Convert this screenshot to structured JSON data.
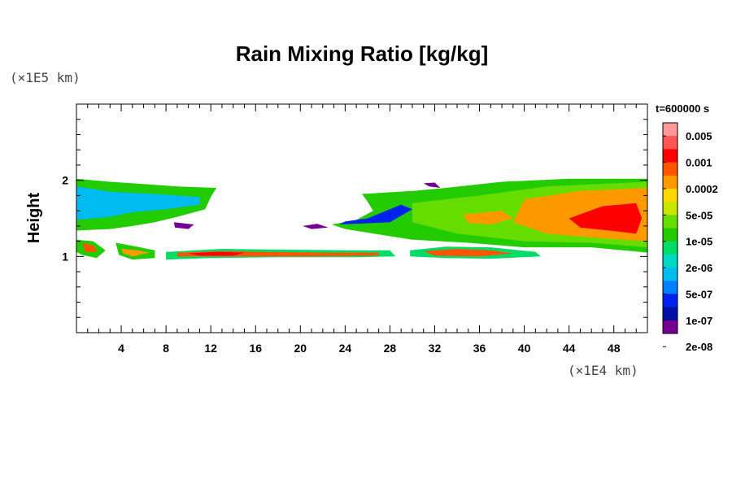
{
  "chart_data": {
    "type": "heatmap",
    "title": "Rain Mixing Ratio [kg/kg]",
    "xlabel": "",
    "ylabel": "Height",
    "x_unit": "(×1E4 km)",
    "y_unit": "(×1E5 km)",
    "time_label": "t=600000 s",
    "x_ticks": [
      "4",
      "8",
      "12",
      "16",
      "20",
      "24",
      "28",
      "32",
      "36",
      "40",
      "44",
      "48"
    ],
    "x_tick_values": [
      4,
      8,
      12,
      16,
      20,
      24,
      28,
      32,
      36,
      40,
      44,
      48
    ],
    "y_ticks": [
      "1",
      "2"
    ],
    "y_tick_values": [
      1,
      2
    ],
    "xlim": [
      0,
      51
    ],
    "ylim": [
      0,
      3
    ],
    "grid": false,
    "legend": {
      "placement": "right",
      "labels": [
        "0.005",
        "0.001",
        "0.0002",
        "5e-05",
        "1e-05",
        "2e-06",
        "5e-07",
        "1e-07",
        "2e-08"
      ],
      "colors": [
        "#ff9999",
        "#ff5555",
        "#ff0000",
        "#ff5500",
        "#ff9900",
        "#ffd700",
        "#c8e600",
        "#66dd00",
        "#22cc00",
        "#00dd66",
        "#00d9c2",
        "#00bbf0",
        "#0080ff",
        "#0022ee",
        "#000fa8",
        "#750094"
      ]
    },
    "regions": [
      {
        "level": 8,
        "points": [
          [
            0,
            2.02
          ],
          [
            3,
            1.98
          ],
          [
            6,
            1.95
          ],
          [
            9,
            1.92
          ],
          [
            12.5,
            1.9
          ],
          [
            12,
            1.78
          ],
          [
            11.5,
            1.62
          ],
          [
            9,
            1.52
          ],
          [
            7,
            1.45
          ],
          [
            5,
            1.4
          ],
          [
            3,
            1.36
          ],
          [
            0,
            1.34
          ]
        ]
      },
      {
        "level": 11,
        "points": [
          [
            0,
            1.92
          ],
          [
            3,
            1.85
          ],
          [
            7,
            1.82
          ],
          [
            11,
            1.78
          ],
          [
            11,
            1.68
          ],
          [
            8,
            1.62
          ],
          [
            5,
            1.58
          ],
          [
            3,
            1.52
          ],
          [
            0,
            1.48
          ]
        ]
      },
      {
        "level": 8,
        "points": [
          [
            25.5,
            1.82
          ],
          [
            30,
            1.86
          ],
          [
            33,
            1.9
          ],
          [
            38,
            1.98
          ],
          [
            44,
            2.02
          ],
          [
            51,
            2.02
          ],
          [
            51,
            1.05
          ],
          [
            46,
            1.12
          ],
          [
            40,
            1.12
          ],
          [
            35,
            1.18
          ],
          [
            30,
            1.22
          ],
          [
            24,
            1.36
          ],
          [
            22.8,
            1.42
          ],
          [
            25,
            1.48
          ],
          [
            26.5,
            1.6
          ],
          [
            26,
            1.72
          ]
        ]
      },
      {
        "level": 8,
        "points": [
          [
            27,
            1.82
          ],
          [
            31,
            1.83
          ],
          [
            34,
            1.88
          ],
          [
            35,
            1.8
          ],
          [
            33,
            1.72
          ],
          [
            30,
            1.7
          ],
          [
            27.5,
            1.72
          ]
        ]
      },
      {
        "level": 7,
        "points": [
          [
            30,
            1.7
          ],
          [
            36,
            1.8
          ],
          [
            42,
            1.92
          ],
          [
            51,
            1.98
          ],
          [
            51,
            1.12
          ],
          [
            46,
            1.18
          ],
          [
            40,
            1.2
          ],
          [
            34,
            1.3
          ],
          [
            30,
            1.45
          ]
        ]
      },
      {
        "level": 4,
        "points": [
          [
            40,
            1.75
          ],
          [
            45,
            1.86
          ],
          [
            51,
            1.9
          ],
          [
            51,
            1.2
          ],
          [
            47,
            1.24
          ],
          [
            42,
            1.3
          ],
          [
            39,
            1.45
          ]
        ]
      },
      {
        "level": 4,
        "points": [
          [
            34.5,
            1.55
          ],
          [
            38,
            1.6
          ],
          [
            39,
            1.5
          ],
          [
            37,
            1.42
          ],
          [
            35,
            1.44
          ]
        ]
      },
      {
        "level": 2,
        "points": [
          [
            44,
            1.5
          ],
          [
            47,
            1.66
          ],
          [
            50,
            1.7
          ],
          [
            50.5,
            1.5
          ],
          [
            50,
            1.3
          ],
          [
            47,
            1.35
          ],
          [
            45,
            1.38
          ]
        ]
      },
      {
        "level": 13,
        "points": [
          [
            23.5,
            1.42
          ],
          [
            28,
            1.45
          ],
          [
            30,
            1.62
          ],
          [
            29,
            1.68
          ],
          [
            26,
            1.5
          ],
          [
            24,
            1.46
          ]
        ]
      },
      {
        "level": 15,
        "points": [
          [
            8.7,
            1.45
          ],
          [
            10.5,
            1.42
          ],
          [
            10,
            1.36
          ],
          [
            8.8,
            1.38
          ]
        ]
      },
      {
        "level": 15,
        "points": [
          [
            20.2,
            1.4
          ],
          [
            21.5,
            1.43
          ],
          [
            22.5,
            1.38
          ],
          [
            21,
            1.36
          ]
        ]
      },
      {
        "level": 15,
        "points": [
          [
            31,
            1.96
          ],
          [
            31.5,
            1.92
          ],
          [
            32.5,
            1.9
          ],
          [
            32,
            1.97
          ]
        ]
      },
      {
        "level": 8,
        "points": [
          [
            0,
            1.22
          ],
          [
            1.5,
            1.2
          ],
          [
            2.6,
            1.08
          ],
          [
            1.8,
            0.98
          ],
          [
            0.5,
            1.02
          ],
          [
            0,
            1.06
          ]
        ]
      },
      {
        "level": 3,
        "points": [
          [
            0.5,
            1.18
          ],
          [
            1.6,
            1.14
          ],
          [
            1.8,
            1.06
          ],
          [
            0.8,
            1.06
          ]
        ]
      },
      {
        "level": 8,
        "points": [
          [
            3.5,
            1.18
          ],
          [
            5,
            1.14
          ],
          [
            7,
            1.08
          ],
          [
            7,
            0.98
          ],
          [
            5,
            0.96
          ],
          [
            3.8,
            1.02
          ]
        ]
      },
      {
        "level": 4,
        "points": [
          [
            4,
            1.1
          ],
          [
            5.5,
            1.08
          ],
          [
            6.5,
            1.05
          ],
          [
            5,
            1.0
          ],
          [
            4.2,
            1.04
          ]
        ]
      },
      {
        "level": 9,
        "points": [
          [
            8,
            1.06
          ],
          [
            13,
            1.1
          ],
          [
            18,
            1.09
          ],
          [
            25,
            1.08
          ],
          [
            28,
            1.08
          ],
          [
            28.5,
            1.0
          ],
          [
            25,
            0.99
          ],
          [
            18,
            0.99
          ],
          [
            12,
            0.98
          ],
          [
            8,
            0.96
          ]
        ]
      },
      {
        "level": 3,
        "points": [
          [
            9,
            1.05
          ],
          [
            13,
            1.07
          ],
          [
            17,
            1.06
          ],
          [
            22,
            1.05
          ],
          [
            27,
            1.05
          ],
          [
            27,
            1.01
          ],
          [
            20,
            1.0
          ],
          [
            12,
            1.0
          ],
          [
            9,
            1.0
          ]
        ]
      },
      {
        "level": 2,
        "points": [
          [
            10,
            1.04
          ],
          [
            12.5,
            1.06
          ],
          [
            15,
            1.05
          ],
          [
            14,
            1.01
          ],
          [
            11,
            1.01
          ]
        ]
      },
      {
        "level": 9,
        "points": [
          [
            29.8,
            1.08
          ],
          [
            33,
            1.13
          ],
          [
            37,
            1.12
          ],
          [
            41,
            1.06
          ],
          [
            41.5,
            1.0
          ],
          [
            37,
            0.97
          ],
          [
            33,
            0.98
          ],
          [
            29.8,
            1.0
          ]
        ]
      },
      {
        "level": 3,
        "points": [
          [
            31,
            1.07
          ],
          [
            34,
            1.1
          ],
          [
            37,
            1.08
          ],
          [
            39,
            1.04
          ],
          [
            36,
            1.0
          ],
          [
            32,
            1.01
          ]
        ]
      }
    ]
  }
}
